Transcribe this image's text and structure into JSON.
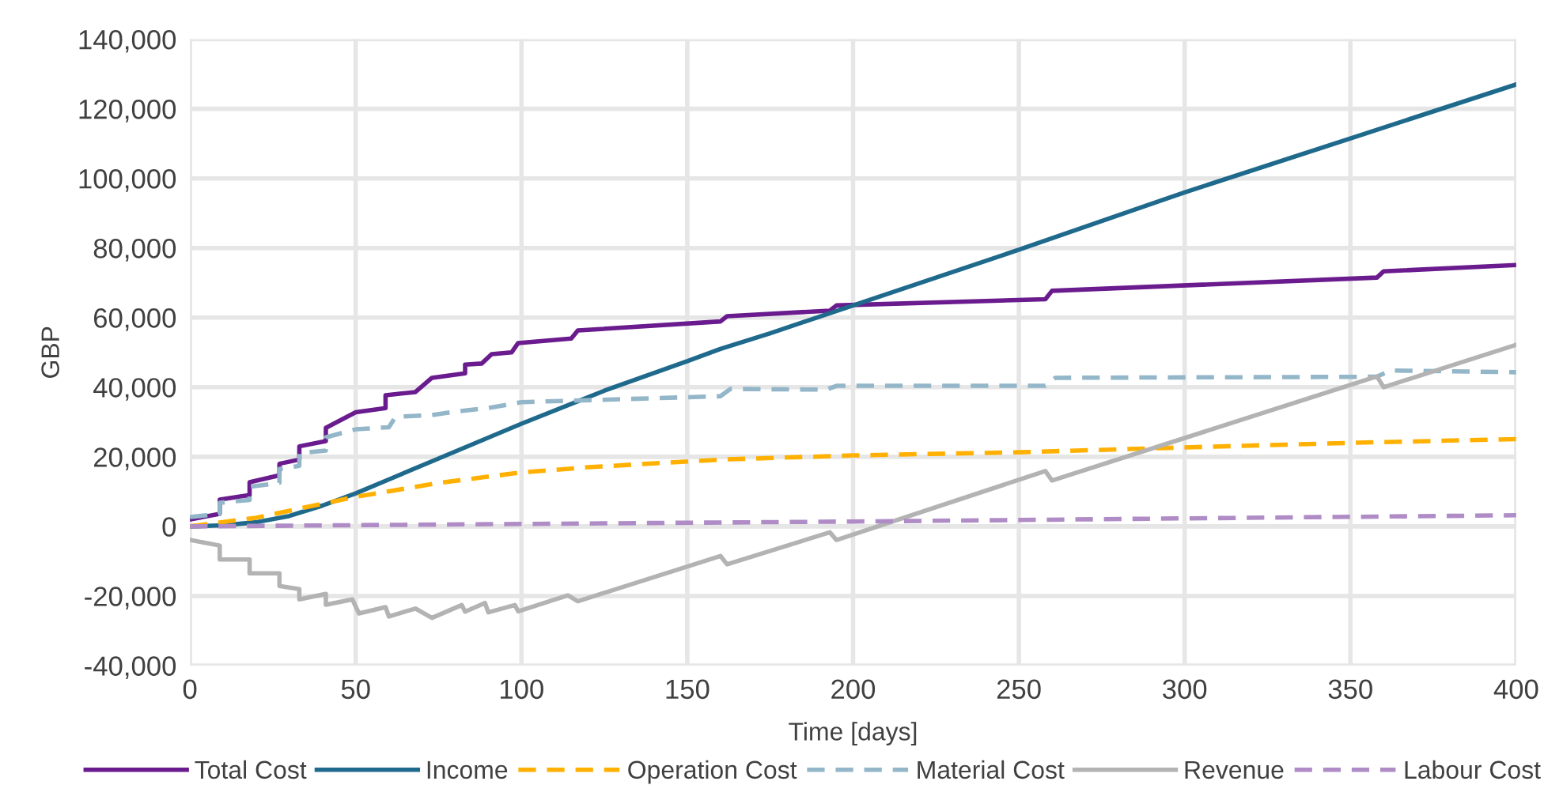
{
  "chart_data": {
    "type": "line",
    "xlabel": "Time [days]",
    "ylabel": "GBP",
    "xlim": [
      0,
      400
    ],
    "xticks": [
      0,
      50,
      100,
      150,
      200,
      250,
      300,
      350,
      400
    ],
    "ylim": [
      -40000,
      140000
    ],
    "yticks": [
      {
        "value": -40000,
        "label": "-40,000"
      },
      {
        "value": -20000,
        "label": "-20,000"
      },
      {
        "value": 0,
        "label": "0"
      },
      {
        "value": 20000,
        "label": "20,000"
      },
      {
        "value": 40000,
        "label": "40,000"
      },
      {
        "value": 60000,
        "label": "60,000"
      },
      {
        "value": 80000,
        "label": "80,000"
      },
      {
        "value": 100000,
        "label": "100,000"
      },
      {
        "value": 120000,
        "label": "120,000"
      },
      {
        "value": 140000,
        "label": "140,000"
      }
    ],
    "grid": true,
    "legend": "bottom",
    "marker": "none",
    "series": [
      {
        "name": "Total Cost",
        "color": "#6a1b8e",
        "line_style": "solid",
        "x": [
          0,
          9,
          9,
          18,
          18,
          27,
          27,
          33,
          33,
          41,
          41,
          50,
          59,
          59,
          68,
          73,
          83,
          83,
          88,
          91,
          97,
          99,
          115,
          117,
          160,
          162,
          193,
          195,
          258,
          260,
          358,
          360,
          400
        ],
        "values": [
          2000,
          3600,
          7700,
          9000,
          12700,
          14700,
          18000,
          19200,
          23000,
          24500,
          28300,
          32800,
          34000,
          37700,
          38600,
          42700,
          44000,
          46500,
          46800,
          49500,
          50000,
          52700,
          54000,
          56300,
          58900,
          60400,
          62000,
          63500,
          65300,
          67700,
          71500,
          73300,
          75100
        ]
      },
      {
        "name": "Income",
        "color": "#1f6a8c",
        "line_style": "solid",
        "x": [
          0,
          10,
          20,
          30,
          40,
          50,
          60,
          75,
          100,
          125,
          150,
          160,
          175,
          200,
          250,
          300,
          350,
          400
        ],
        "values": [
          0,
          300,
          1200,
          3000,
          6000,
          9500,
          13500,
          19500,
          29500,
          39000,
          47500,
          51000,
          55500,
          63500,
          79500,
          96000,
          111500,
          127000
        ]
      },
      {
        "name": "Operation Cost",
        "color": "#ffb000",
        "line_style": "dashed",
        "x": [
          0,
          20,
          40,
          50,
          75,
          100,
          120,
          160,
          200,
          250,
          300,
          350,
          400
        ],
        "values": [
          0,
          2500,
          6500,
          8500,
          12500,
          15500,
          17000,
          19200,
          20400,
          21300,
          22700,
          24000,
          25100
        ]
      },
      {
        "name": "Material Cost",
        "color": "#93b6c9",
        "line_style": "dashed",
        "x": [
          0,
          9,
          9,
          18,
          18,
          27,
          27,
          33,
          33,
          41,
          41,
          50,
          60,
          62,
          73,
          80,
          90,
          100,
          160,
          163,
          192,
          195,
          258,
          261,
          358,
          362,
          400
        ],
        "values": [
          2700,
          3600,
          6800,
          7600,
          11400,
          12500,
          16500,
          17400,
          21000,
          21800,
          25600,
          27900,
          28500,
          31500,
          32000,
          33000,
          34000,
          35700,
          37400,
          39500,
          39300,
          40400,
          40400,
          42700,
          43000,
          44800,
          44300
        ]
      },
      {
        "name": "Revenue",
        "color": "#b3b3b3",
        "line_style": "solid",
        "x": [
          0,
          9,
          9,
          18,
          18,
          27,
          27,
          33,
          33,
          41,
          41,
          49,
          51,
          59,
          60,
          68,
          73,
          82,
          83,
          89,
          90,
          98,
          99,
          114,
          117,
          160,
          162,
          193,
          195,
          258,
          260,
          358,
          360,
          400
        ],
        "values": [
          -3900,
          -5500,
          -9500,
          -9500,
          -13500,
          -13500,
          -17100,
          -18000,
          -21000,
          -19400,
          -22500,
          -21000,
          -25000,
          -23200,
          -25900,
          -23600,
          -26300,
          -22600,
          -24500,
          -22000,
          -24700,
          -22600,
          -24400,
          -19800,
          -21500,
          -8500,
          -10900,
          -1700,
          -3900,
          15900,
          13200,
          43100,
          40000,
          52200
        ]
      },
      {
        "name": "Labour Cost",
        "color": "#b08cc6",
        "line_style": "dashed",
        "x": [
          0,
          200,
          400
        ],
        "values": [
          0,
          1400,
          3200
        ]
      }
    ]
  }
}
